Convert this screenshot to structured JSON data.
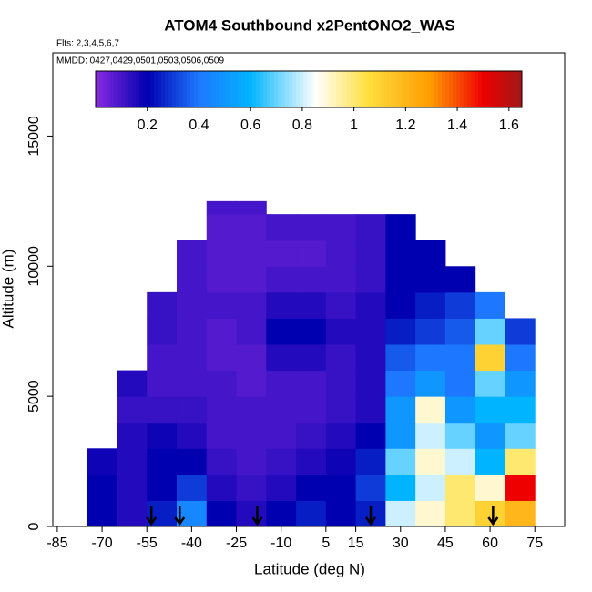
{
  "chart_data": {
    "type": "heatmap",
    "title": "ATOM4 Southbound x2PentONO2_WAS",
    "subtitle": "Flts: 2,3,4,5,6,7",
    "annotation": "MMDD: 0427,0429,0501,0503,0506,0509",
    "xlabel": "Latitude (deg N)",
    "ylabel": "Altitude (m)",
    "xlim": [
      -86.5,
      85
    ],
    "ylim": [
      0,
      18200
    ],
    "xticks": [
      -85,
      -70,
      -55,
      -40,
      -25,
      -10,
      5,
      15,
      30,
      45,
      60,
      75
    ],
    "yticks": [
      0,
      5000,
      10000,
      15000
    ],
    "x_edges": [
      -75,
      -65,
      -55,
      -45,
      -35,
      -25,
      -15,
      -5,
      5,
      15,
      25,
      35,
      45,
      55,
      65,
      75
    ],
    "y_edges": [
      0,
      1000,
      2000,
      3000,
      4000,
      5000,
      6000,
      7000,
      8000,
      9000,
      10000,
      11000,
      12000,
      12500
    ],
    "z": [
      [
        0.2,
        0.15,
        0.25,
        0.45,
        0.2,
        0.15,
        0.2,
        0.25,
        0.2,
        0.25,
        0.8,
        0.9,
        1.0,
        1.1,
        1.2
      ],
      [
        0.2,
        0.15,
        0.2,
        0.3,
        0.15,
        0.12,
        0.15,
        0.2,
        0.2,
        0.3,
        0.6,
        0.8,
        1.0,
        0.9,
        1.5
      ],
      [
        0.18,
        0.15,
        0.2,
        0.2,
        0.12,
        0.1,
        0.12,
        0.15,
        0.18,
        0.25,
        0.7,
        0.9,
        0.8,
        0.6,
        1.0
      ],
      [
        null,
        0.15,
        0.18,
        0.15,
        0.1,
        0.1,
        0.1,
        0.12,
        0.15,
        0.2,
        0.5,
        0.8,
        0.7,
        0.5,
        0.7
      ],
      [
        null,
        0.12,
        0.12,
        0.12,
        0.1,
        0.1,
        0.1,
        0.1,
        0.12,
        0.15,
        0.5,
        0.9,
        0.5,
        0.6,
        0.6
      ],
      [
        null,
        0.15,
        0.1,
        0.1,
        0.1,
        0.08,
        0.1,
        0.1,
        0.12,
        0.15,
        0.4,
        0.5,
        0.4,
        0.7,
        0.5
      ],
      [
        null,
        null,
        0.1,
        0.1,
        0.08,
        0.08,
        0.15,
        0.15,
        0.12,
        0.15,
        0.35,
        0.4,
        0.4,
        1.1,
        0.4
      ],
      [
        null,
        null,
        0.12,
        0.1,
        0.08,
        0.1,
        0.2,
        0.2,
        0.15,
        0.15,
        0.25,
        0.3,
        0.35,
        0.7,
        0.3
      ],
      [
        null,
        null,
        0.12,
        0.1,
        0.1,
        0.1,
        0.15,
        0.15,
        0.12,
        0.15,
        0.2,
        0.25,
        0.3,
        0.4,
        null
      ],
      [
        null,
        null,
        null,
        0.1,
        0.08,
        0.08,
        0.1,
        0.1,
        0.1,
        0.12,
        0.2,
        0.2,
        0.2,
        null,
        null
      ],
      [
        null,
        null,
        null,
        0.1,
        0.08,
        0.08,
        0.08,
        0.08,
        0.1,
        0.12,
        0.2,
        0.2,
        null,
        null,
        null
      ],
      [
        null,
        null,
        null,
        null,
        0.08,
        0.08,
        0.1,
        0.1,
        0.1,
        0.12,
        0.2,
        null,
        null,
        null,
        null
      ],
      [
        null,
        null,
        null,
        null,
        0.1,
        0.1,
        null,
        null,
        null,
        null,
        null,
        null,
        null,
        null,
        null
      ]
    ],
    "arrows_x": [
      -53.5,
      -44,
      -18,
      20,
      61
    ],
    "colorbar_lim": [
      0,
      1.65
    ],
    "colorbar_ticks": [
      0.2,
      0.4,
      0.6,
      0.8,
      1.0,
      1.2,
      1.4,
      1.6
    ],
    "colorscale": [
      [
        0,
        "#8a2be2"
      ],
      [
        0.2,
        "#0000b0"
      ],
      [
        0.4,
        "#1e78ff"
      ],
      [
        0.6,
        "#00b4ff"
      ],
      [
        0.85,
        "#ffffff"
      ],
      [
        1.05,
        "#ffe040"
      ],
      [
        1.3,
        "#ff9a00"
      ],
      [
        1.5,
        "#ee0000"
      ],
      [
        1.65,
        "#a01818"
      ]
    ]
  }
}
